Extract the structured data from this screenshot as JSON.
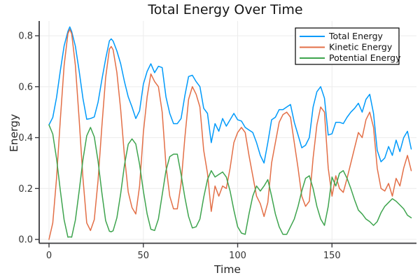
{
  "figure": {
    "background": "#ffffff"
  },
  "chart_data": {
    "type": "line",
    "title": "Total Energy Over Time",
    "xlabel": "Time",
    "ylabel": "Energy",
    "grid": true,
    "legend_position": "top-right",
    "xlim": [
      -5.2,
      194.8
    ],
    "ylim": [
      -0.015,
      0.858
    ],
    "xtick_values": [
      0,
      50,
      100,
      150
    ],
    "xtick_labels": [
      "0",
      "50",
      "100",
      "150"
    ],
    "ytick_values": [
      0.0,
      0.2,
      0.4,
      0.6,
      0.8
    ],
    "ytick_labels": [
      "0.0",
      "0.2",
      "0.4",
      "0.6",
      "0.8"
    ],
    "x": [
      0,
      2,
      4,
      6,
      8,
      10,
      11,
      12,
      14,
      16,
      18,
      20,
      22,
      24,
      26,
      28,
      30,
      32,
      33,
      34,
      36,
      38,
      40,
      42,
      44,
      46,
      48,
      50,
      52,
      54,
      56,
      58,
      60,
      62,
      64,
      66,
      68,
      70,
      72,
      74,
      76,
      78,
      80,
      82,
      84,
      86,
      88,
      90,
      92,
      94,
      96,
      98,
      100,
      102,
      104,
      106,
      108,
      110,
      112,
      114,
      116,
      118,
      120,
      122,
      124,
      126,
      128,
      130,
      132,
      134,
      136,
      138,
      140,
      142,
      144,
      146,
      148,
      150,
      152,
      154,
      156,
      158,
      160,
      162,
      164,
      166,
      168,
      170,
      172,
      174,
      176,
      178,
      180,
      182,
      184,
      186,
      188,
      190,
      192
    ],
    "series": [
      {
        "name": "Total Energy",
        "color": "#009AFA",
        "values": [
          0.45,
          0.479,
          0.558,
          0.663,
          0.76,
          0.817,
          0.835,
          0.817,
          0.759,
          0.661,
          0.554,
          0.472,
          0.475,
          0.481,
          0.539,
          0.627,
          0.709,
          0.78,
          0.788,
          0.779,
          0.74,
          0.69,
          0.62,
          0.56,
          0.52,
          0.475,
          0.505,
          0.61,
          0.66,
          0.69,
          0.655,
          0.68,
          0.675,
          0.56,
          0.495,
          0.455,
          0.455,
          0.475,
          0.565,
          0.64,
          0.645,
          0.62,
          0.6,
          0.515,
          0.495,
          0.38,
          0.455,
          0.425,
          0.475,
          0.445,
          0.47,
          0.495,
          0.47,
          0.465,
          0.44,
          0.43,
          0.42,
          0.38,
          0.33,
          0.3,
          0.38,
          0.47,
          0.48,
          0.51,
          0.51,
          0.52,
          0.53,
          0.46,
          0.41,
          0.36,
          0.37,
          0.4,
          0.52,
          0.58,
          0.6,
          0.555,
          0.41,
          0.415,
          0.46,
          0.46,
          0.455,
          0.48,
          0.5,
          0.515,
          0.535,
          0.5,
          0.55,
          0.57,
          0.495,
          0.35,
          0.305,
          0.32,
          0.365,
          0.33,
          0.39,
          0.345,
          0.4,
          0.425,
          0.355
        ]
      },
      {
        "name": "Kinetic Energy",
        "color": "#E36F47",
        "values": [
          0,
          0.065,
          0.241,
          0.471,
          0.683,
          0.808,
          0.825,
          0.808,
          0.683,
          0.471,
          0.241,
          0.065,
          0.035,
          0.078,
          0.232,
          0.443,
          0.635,
          0.748,
          0.758,
          0.745,
          0.655,
          0.51,
          0.328,
          0.186,
          0.125,
          0.1,
          0.21,
          0.42,
          0.56,
          0.65,
          0.62,
          0.6,
          0.5,
          0.29,
          0.17,
          0.12,
          0.12,
          0.22,
          0.4,
          0.55,
          0.6,
          0.57,
          0.52,
          0.35,
          0.26,
          0.11,
          0.21,
          0.17,
          0.21,
          0.2,
          0.28,
          0.38,
          0.42,
          0.44,
          0.42,
          0.33,
          0.25,
          0.17,
          0.14,
          0.09,
          0.145,
          0.3,
          0.38,
          0.46,
          0.49,
          0.5,
          0.48,
          0.38,
          0.28,
          0.17,
          0.13,
          0.15,
          0.32,
          0.45,
          0.52,
          0.5,
          0.28,
          0.17,
          0.25,
          0.2,
          0.185,
          0.24,
          0.3,
          0.36,
          0.42,
          0.4,
          0.47,
          0.5,
          0.44,
          0.28,
          0.2,
          0.19,
          0.22,
          0.17,
          0.24,
          0.21,
          0.28,
          0.33,
          0.27
        ]
      },
      {
        "name": "Potential Energy",
        "color": "#3EA44E",
        "values": [
          0.45,
          0.414,
          0.317,
          0.192,
          0.077,
          0.009,
          0.01,
          0.009,
          0.076,
          0.19,
          0.313,
          0.407,
          0.44,
          0.403,
          0.307,
          0.184,
          0.074,
          0.032,
          0.03,
          0.034,
          0.085,
          0.18,
          0.292,
          0.374,
          0.395,
          0.375,
          0.295,
          0.19,
          0.1,
          0.04,
          0.035,
          0.08,
          0.175,
          0.27,
          0.325,
          0.335,
          0.335,
          0.255,
          0.165,
          0.09,
          0.045,
          0.05,
          0.08,
          0.165,
          0.235,
          0.27,
          0.245,
          0.255,
          0.265,
          0.245,
          0.19,
          0.115,
          0.05,
          0.025,
          0.02,
          0.1,
          0.17,
          0.21,
          0.19,
          0.21,
          0.235,
          0.17,
          0.1,
          0.05,
          0.02,
          0.02,
          0.05,
          0.08,
          0.13,
          0.19,
          0.24,
          0.25,
          0.2,
          0.13,
          0.08,
          0.055,
          0.13,
          0.245,
          0.21,
          0.26,
          0.27,
          0.24,
          0.2,
          0.155,
          0.115,
          0.1,
          0.08,
          0.07,
          0.055,
          0.07,
          0.105,
          0.13,
          0.145,
          0.16,
          0.15,
          0.135,
          0.12,
          0.095,
          0.085
        ]
      }
    ]
  },
  "style": {
    "grid_color": "#ECECEC",
    "axis_color": "#3A3A3E",
    "tick_text_color": "#333333",
    "legend_border_color": "#000000",
    "legend_background": "#ffffff"
  }
}
